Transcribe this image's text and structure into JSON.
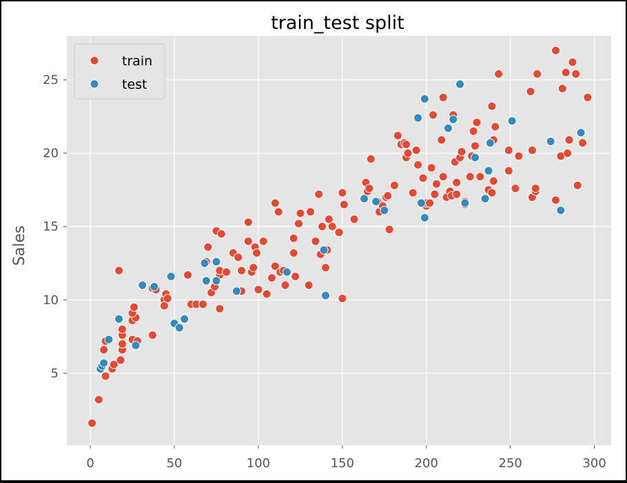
{
  "chart_data": {
    "type": "scatter",
    "title": "train_test split",
    "xlabel": "",
    "ylabel": "Sales",
    "xlim": [
      -14,
      310
    ],
    "ylim": [
      0.1,
      28.0
    ],
    "xticks": [
      0,
      50,
      100,
      150,
      200,
      250,
      300
    ],
    "yticks": [
      5,
      10,
      15,
      20,
      25
    ],
    "grid": true,
    "legend_position": "top-left",
    "series": [
      {
        "name": "train",
        "color": "#E24A33",
        "points": [
          [
            1,
            1.6
          ],
          [
            5,
            3.2
          ],
          [
            9,
            4.8
          ],
          [
            13,
            5.3
          ],
          [
            14,
            5.6
          ],
          [
            18,
            5.9
          ],
          [
            19,
            6.6
          ],
          [
            19,
            7.0
          ],
          [
            8,
            6.6
          ],
          [
            9,
            7.2
          ],
          [
            17,
            12.0
          ],
          [
            19,
            7.6
          ],
          [
            19,
            8.0
          ],
          [
            25,
            7.3
          ],
          [
            28,
            7.2
          ],
          [
            25,
            8.6
          ],
          [
            27,
            8.8
          ],
          [
            25,
            9.1
          ],
          [
            26,
            9.5
          ],
          [
            37,
            7.6
          ],
          [
            37,
            10.8
          ],
          [
            39,
            10.7
          ],
          [
            44,
            10.0
          ],
          [
            44,
            9.6
          ],
          [
            45,
            10.4
          ],
          [
            46,
            10.1
          ],
          [
            58,
            11.7
          ],
          [
            60,
            9.7
          ],
          [
            63,
            9.7
          ],
          [
            67,
            9.7
          ],
          [
            69,
            12.6
          ],
          [
            70,
            13.6
          ],
          [
            72,
            10.5
          ],
          [
            74,
            10.9
          ],
          [
            75,
            14.7
          ],
          [
            77,
            11.7
          ],
          [
            77,
            9.4
          ],
          [
            77,
            12.0
          ],
          [
            78,
            14.5
          ],
          [
            81,
            11.9
          ],
          [
            85,
            13.2
          ],
          [
            88,
            12.9
          ],
          [
            90,
            10.6
          ],
          [
            90,
            12.0
          ],
          [
            94,
            15.3
          ],
          [
            94,
            14.0
          ],
          [
            96,
            11.9
          ],
          [
            97,
            12.2
          ],
          [
            98,
            13.6
          ],
          [
            99,
            13.2
          ],
          [
            100,
            10.7
          ],
          [
            103,
            14.0
          ],
          [
            105,
            10.4
          ],
          [
            108,
            11.5
          ],
          [
            110,
            16.6
          ],
          [
            110,
            12.3
          ],
          [
            112,
            16.0
          ],
          [
            113,
            11.9
          ],
          [
            115,
            12.0
          ],
          [
            116,
            11.0
          ],
          [
            121,
            14.2
          ],
          [
            121,
            13.2
          ],
          [
            122,
            11.6
          ],
          [
            124,
            15.2
          ],
          [
            125,
            15.9
          ],
          [
            130,
            11.0
          ],
          [
            131,
            16.0
          ],
          [
            134,
            14.0
          ],
          [
            136,
            17.2
          ],
          [
            137,
            13.1
          ],
          [
            138,
            15.0
          ],
          [
            140,
            12.2
          ],
          [
            141,
            13.4
          ],
          [
            142,
            15.5
          ],
          [
            144,
            15.0
          ],
          [
            148,
            14.6
          ],
          [
            150,
            17.3
          ],
          [
            150,
            10.1
          ],
          [
            151,
            16.5
          ],
          [
            157,
            15.5
          ],
          [
            164,
            18.0
          ],
          [
            165,
            17.4
          ],
          [
            166,
            17.6
          ],
          [
            167,
            19.6
          ],
          [
            170,
            16.7
          ],
          [
            171,
            16.7
          ],
          [
            172,
            16.0
          ],
          [
            174,
            16.4
          ],
          [
            176,
            17.0
          ],
          [
            177,
            17.1
          ],
          [
            178,
            14.8
          ],
          [
            181,
            17.8
          ],
          [
            183,
            21.2
          ],
          [
            185,
            20.6
          ],
          [
            187,
            20.7
          ],
          [
            188,
            20.6
          ],
          [
            188,
            19.7
          ],
          [
            189,
            20.0
          ],
          [
            192,
            17.3
          ],
          [
            194,
            20.2
          ],
          [
            195,
            19.2
          ],
          [
            198,
            18.3
          ],
          [
            200,
            16.4
          ],
          [
            200,
            16.6
          ],
          [
            202,
            16.6
          ],
          [
            203,
            19.0
          ],
          [
            204,
            22.6
          ],
          [
            205,
            17.2
          ],
          [
            206,
            17.9
          ],
          [
            209,
            20.9
          ],
          [
            210,
            18.4
          ],
          [
            210,
            23.8
          ],
          [
            212,
            17.0
          ],
          [
            214,
            17.4
          ],
          [
            215,
            17.1
          ],
          [
            216,
            22.6
          ],
          [
            217,
            19.4
          ],
          [
            218,
            18.0
          ],
          [
            218,
            17.2
          ],
          [
            220,
            19.7
          ],
          [
            221,
            20.1
          ],
          [
            223,
            16.7
          ],
          [
            223,
            16.5
          ],
          [
            226,
            18.4
          ],
          [
            227,
            19.8
          ],
          [
            228,
            21.5
          ],
          [
            229,
            20.5
          ],
          [
            230,
            22.1
          ],
          [
            232,
            18.4
          ],
          [
            237,
            17.5
          ],
          [
            239,
            17.3
          ],
          [
            239,
            23.2
          ],
          [
            240,
            18.1
          ],
          [
            240,
            20.9
          ],
          [
            241,
            21.8
          ],
          [
            243,
            25.4
          ],
          [
            249,
            18.8
          ],
          [
            249,
            20.2
          ],
          [
            253,
            17.6
          ],
          [
            255,
            19.8
          ],
          [
            262,
            24.2
          ],
          [
            263,
            17.0
          ],
          [
            263,
            20.2
          ],
          [
            265,
            17.4
          ],
          [
            265,
            17.6
          ],
          [
            266,
            25.4
          ],
          [
            277,
            16.8
          ],
          [
            277,
            27.0
          ],
          [
            280,
            19.8
          ],
          [
            281,
            24.4
          ],
          [
            283,
            25.5
          ],
          [
            284,
            20.0
          ],
          [
            285,
            20.9
          ],
          [
            287,
            26.2
          ],
          [
            289,
            25.4
          ],
          [
            290,
            17.8
          ],
          [
            293,
            20.7
          ],
          [
            296,
            23.8
          ]
        ]
      },
      {
        "name": "test",
        "color": "#348ABD",
        "points": [
          [
            6,
            5.3
          ],
          [
            7,
            5.5
          ],
          [
            8,
            5.7
          ],
          [
            11,
            7.3
          ],
          [
            17,
            8.7
          ],
          [
            27,
            6.9
          ],
          [
            31,
            11.0
          ],
          [
            38,
            10.9
          ],
          [
            48,
            11.6
          ],
          [
            50,
            8.4
          ],
          [
            53,
            8.1
          ],
          [
            56,
            8.7
          ],
          [
            68,
            12.5
          ],
          [
            69,
            11.3
          ],
          [
            75,
            11.3
          ],
          [
            75,
            12.6
          ],
          [
            87,
            10.6
          ],
          [
            117,
            11.9
          ],
          [
            139,
            13.4
          ],
          [
            140,
            10.3
          ],
          [
            163,
            16.9
          ],
          [
            170,
            16.7
          ],
          [
            175,
            16.1
          ],
          [
            195,
            22.4
          ],
          [
            197,
            16.6
          ],
          [
            199,
            23.7
          ],
          [
            199,
            15.6
          ],
          [
            213,
            21.7
          ],
          [
            216,
            22.3
          ],
          [
            220,
            24.7
          ],
          [
            223,
            16.6
          ],
          [
            229,
            19.7
          ],
          [
            235,
            16.9
          ],
          [
            237,
            18.8
          ],
          [
            238,
            20.7
          ],
          [
            251,
            22.2
          ],
          [
            274,
            20.8
          ],
          [
            280,
            16.1
          ],
          [
            292,
            21.4
          ]
        ]
      }
    ]
  }
}
